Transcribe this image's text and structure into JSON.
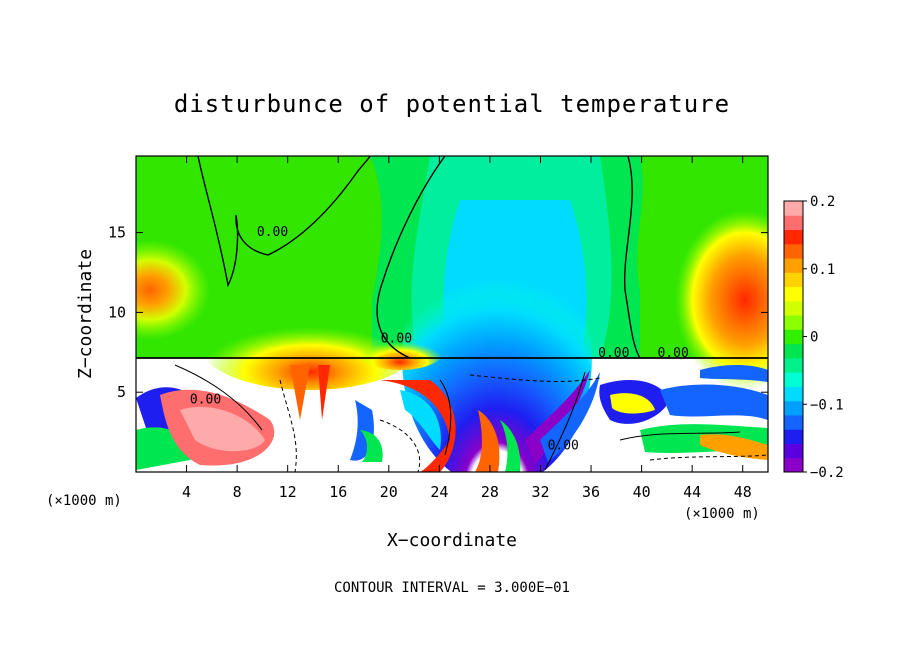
{
  "chart_data": {
    "type": "heatmap",
    "title": "disturbunce of potential temperature",
    "xlabel": "X−coordinate",
    "ylabel": "Z−coordinate",
    "x_unit_left": "(×1000 m)",
    "x_unit_right": "(×1000 m)",
    "footer": "CONTOUR INTERVAL = 3.000E−01",
    "xlim": [
      0,
      50
    ],
    "ylim": [
      0,
      19.8
    ],
    "xticks": [
      4,
      8,
      12,
      16,
      20,
      24,
      28,
      32,
      36,
      40,
      44,
      48
    ],
    "yticks": [
      5,
      10,
      15
    ],
    "colorbar": {
      "range": [
        -0.2,
        0.2
      ],
      "tick_values": [
        0.2,
        0.1,
        0,
        -0.1,
        -0.2
      ],
      "tick_labels": [
        "0.2",
        "0.1",
        "0",
        "−0.1",
        "−0.2"
      ],
      "colors": [
        "#8a00c8",
        "#5a00e0",
        "#1e1ef0",
        "#1464ff",
        "#00a0ff",
        "#00dcff",
        "#00ffd2",
        "#00f08c",
        "#00e650",
        "#32f000",
        "#8cff00",
        "#d2ff00",
        "#ffff00",
        "#ffd200",
        "#ffa000",
        "#ff6400",
        "#ff2800",
        "#ff6e6e",
        "#ffaaaa"
      ]
    },
    "contour_label": "0.00",
    "contour_label_positions": [
      [
        10.8,
        14.8
      ],
      [
        20.6,
        8.1
      ],
      [
        5.5,
        4.3
      ],
      [
        33.8,
        1.4
      ],
      [
        37.8,
        7.2
      ],
      [
        42.5,
        7.2
      ]
    ],
    "interface_height": 7.3,
    "features": [
      {
        "name": "cold-bubble",
        "x_center": 29,
        "x_halfwidth": 3.2,
        "z_top": 12.8,
        "value": -0.2
      },
      {
        "name": "warm-region-left",
        "x_center": 2,
        "z_center": 11.5,
        "value": 0.1
      },
      {
        "name": "warm-region-right",
        "x_center": 47,
        "z_center": 10.5,
        "value": 0.15
      },
      {
        "name": "warm-band-low",
        "x_center": 13,
        "z_center": 8.5,
        "value": 0.1
      }
    ]
  }
}
